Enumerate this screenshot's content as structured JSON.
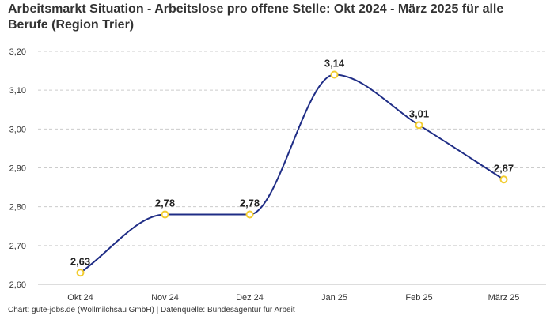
{
  "title": "Arbeitsmarkt Situation - Arbeitslose pro offene Stelle: Okt 2024 - März 2025 für alle Berufe (Region Trier)",
  "footer": "Chart: gute-jobs.de (Wollmilchsau GmbH) | Datenquelle: Bundesagentur für Arbeit",
  "colors": {
    "line": "#1f2d86",
    "marker_stroke": "#f2cc2f",
    "marker_fill": "#ffffff",
    "grid": "#cccccc",
    "text": "#333333"
  },
  "chart_data": {
    "type": "line",
    "categories": [
      "Okt 24",
      "Nov 24",
      "Dez 24",
      "Jan 25",
      "Feb 25",
      "März 25"
    ],
    "values": [
      2.63,
      2.78,
      2.78,
      3.14,
      3.01,
      2.87
    ],
    "data_labels": [
      "2,63",
      "2,78",
      "2,78",
      "3,14",
      "3,01",
      "2,87"
    ],
    "y_ticks": [
      "2,60",
      "2,70",
      "2,80",
      "2,90",
      "3,00",
      "3,10",
      "3,20"
    ],
    "ylim": [
      2.6,
      3.2
    ],
    "grid": true,
    "smooth": true,
    "legend": "none"
  }
}
